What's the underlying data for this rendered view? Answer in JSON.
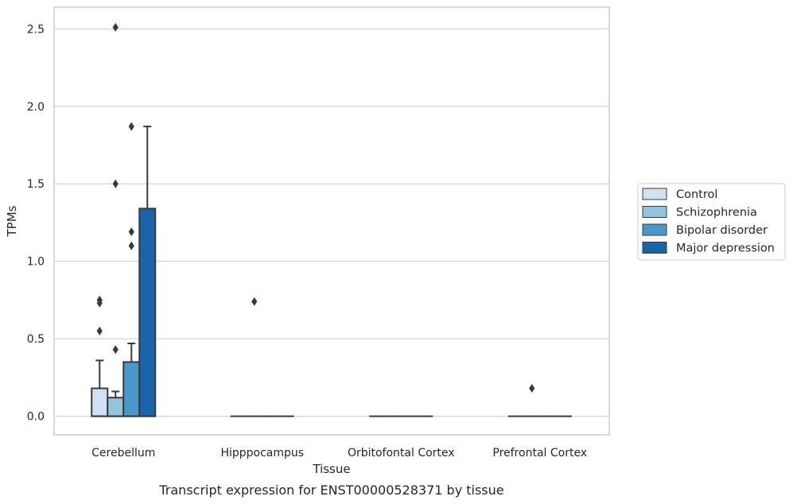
{
  "chart_data": {
    "type": "box",
    "caption": "Transcript expression for ENST00000528371 by tissue",
    "xlabel": "Tissue",
    "ylabel": "TPMs",
    "ylim": [
      -0.12,
      2.64
    ],
    "yticks": [
      0.0,
      0.5,
      1.0,
      1.5,
      2.0,
      2.5
    ],
    "ytick_labels": [
      "0.0",
      "0.5",
      "1.0",
      "1.5",
      "2.0",
      "2.5"
    ],
    "grid": true,
    "legend_position": "right",
    "categories": [
      "Cerebellum",
      "Hipppocampus",
      "Orbitofontal Cortex",
      "Prefrontal Cortex"
    ],
    "series": [
      {
        "name": "Control",
        "color": "#cfe1f2",
        "boxes": [
          {
            "q1": 0.0,
            "median": 0.0,
            "q3": 0.18,
            "whisker_low": 0.0,
            "whisker_high": 0.36,
            "outliers": [
              0.55,
              0.73,
              0.75
            ]
          },
          {
            "q1": 0.0,
            "median": 0.0,
            "q3": 0.0,
            "whisker_low": 0.0,
            "whisker_high": 0.0,
            "outliers": []
          },
          {
            "q1": 0.0,
            "median": 0.0,
            "q3": 0.0,
            "whisker_low": 0.0,
            "whisker_high": 0.0,
            "outliers": []
          },
          {
            "q1": 0.0,
            "median": 0.0,
            "q3": 0.0,
            "whisker_low": 0.0,
            "whisker_high": 0.0,
            "outliers": []
          }
        ]
      },
      {
        "name": "Schizophrenia",
        "color": "#93c4de",
        "boxes": [
          {
            "q1": 0.0,
            "median": 0.0,
            "q3": 0.12,
            "whisker_low": 0.0,
            "whisker_high": 0.16,
            "outliers": [
              0.43,
              1.5,
              2.51
            ]
          },
          {
            "q1": 0.0,
            "median": 0.0,
            "q3": 0.0,
            "whisker_low": 0.0,
            "whisker_high": 0.0,
            "outliers": [
              0.74
            ]
          },
          {
            "q1": 0.0,
            "median": 0.0,
            "q3": 0.0,
            "whisker_low": 0.0,
            "whisker_high": 0.0,
            "outliers": []
          },
          {
            "q1": 0.0,
            "median": 0.0,
            "q3": 0.0,
            "whisker_low": 0.0,
            "whisker_high": 0.0,
            "outliers": [
              0.18
            ]
          }
        ]
      },
      {
        "name": "Bipolar disorder",
        "color": "#4a98c9",
        "boxes": [
          {
            "q1": 0.0,
            "median": 0.0,
            "q3": 0.35,
            "whisker_low": 0.0,
            "whisker_high": 0.47,
            "outliers": [
              1.1,
              1.19,
              1.87
            ]
          },
          {
            "q1": 0.0,
            "median": 0.0,
            "q3": 0.0,
            "whisker_low": 0.0,
            "whisker_high": 0.0,
            "outliers": []
          },
          {
            "q1": 0.0,
            "median": 0.0,
            "q3": 0.0,
            "whisker_low": 0.0,
            "whisker_high": 0.0,
            "outliers": []
          },
          {
            "q1": 0.0,
            "median": 0.0,
            "q3": 0.0,
            "whisker_low": 0.0,
            "whisker_high": 0.0,
            "outliers": []
          }
        ]
      },
      {
        "name": "Major depression",
        "color": "#1764ab",
        "boxes": [
          {
            "q1": 0.0,
            "median": 0.0,
            "q3": 1.34,
            "whisker_low": 0.0,
            "whisker_high": 1.87,
            "outliers": []
          },
          {
            "q1": 0.0,
            "median": 0.0,
            "q3": 0.0,
            "whisker_low": 0.0,
            "whisker_high": 0.0,
            "outliers": []
          },
          {
            "q1": 0.0,
            "median": 0.0,
            "q3": 0.0,
            "whisker_low": 0.0,
            "whisker_high": 0.0,
            "outliers": []
          },
          {
            "q1": 0.0,
            "median": 0.0,
            "q3": 0.0,
            "whisker_low": 0.0,
            "whisker_high": 0.0,
            "outliers": []
          }
        ]
      }
    ],
    "colors": {
      "line": "#3a3a3a",
      "grid": "#cccccc",
      "frame": "#c0c0c0"
    }
  }
}
